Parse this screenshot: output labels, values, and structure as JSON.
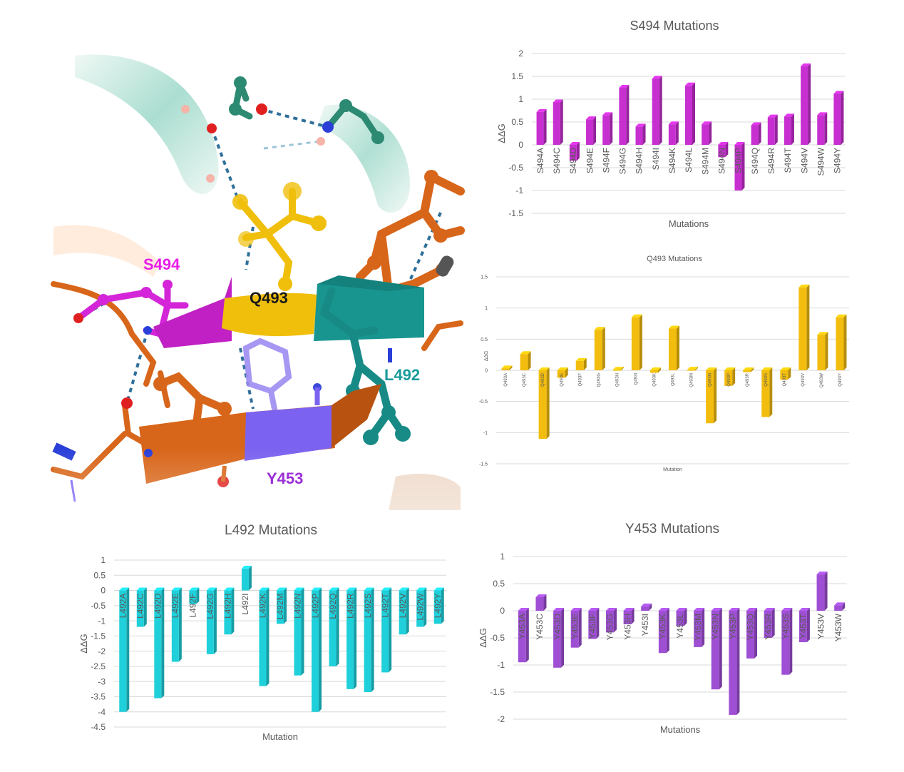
{
  "structure": {
    "labels": [
      {
        "id": "s494",
        "text": "S494",
        "color": "#e81ee8"
      },
      {
        "id": "q493",
        "text": "Q493",
        "color": "#1a1a1a"
      },
      {
        "id": "l492",
        "text": "L492",
        "color": "#1a9a9a"
      },
      {
        "id": "y453",
        "text": "Y453",
        "color": "#9b2fd6"
      }
    ],
    "colors": {
      "helix": "#8fd3c1",
      "orange_chain": "#d8661a",
      "magenta": "#d426d8",
      "yellow": "#f0bf0c",
      "teal": "#178a86",
      "purple": "#7b62f0",
      "oxygen": "#e02020",
      "nitrogen": "#2a3fd8",
      "hbond": "#2f6f9a"
    }
  },
  "chart_data": [
    {
      "id": "s494",
      "type": "bar",
      "title": "S494 Mutations",
      "xlabel": "Mutations",
      "ylabel": "ΔΔG",
      "ylim": [
        -1.5,
        2
      ],
      "yticks": [
        "2",
        "1.5",
        "1",
        "0.5",
        "0",
        "-0.5",
        "-1",
        "-1.5"
      ],
      "tick_values": [
        2,
        1.5,
        1,
        0.5,
        0,
        -0.5,
        -1,
        -1.5
      ],
      "color": "#c72fd0",
      "categories": [
        "S494A",
        "S494C",
        "S494D",
        "S494E",
        "S494F",
        "S494G",
        "S494H",
        "S494I",
        "S494K",
        "S494L",
        "S494M",
        "S494N",
        "S494P",
        "S494Q",
        "S494R",
        "S494T",
        "S494V",
        "S494W",
        "S494Y"
      ],
      "values": [
        0.72,
        0.93,
        -0.35,
        0.56,
        0.65,
        1.25,
        0.4,
        1.45,
        0.45,
        1.3,
        0.45,
        -0.27,
        -1.0,
        0.43,
        0.6,
        0.62,
        1.72,
        0.65,
        1.12
      ]
    },
    {
      "id": "q493",
      "type": "bar",
      "title": "Q493 Mutations",
      "xlabel": "Mutation",
      "ylabel": "ΔΔG",
      "ylim": [
        -1.5,
        1.5
      ],
      "yticks": [
        "1.5",
        "1",
        "0.5",
        "0",
        "-0.5",
        "-1",
        "-1.5"
      ],
      "tick_values": [
        1.5,
        1,
        0.5,
        0,
        -0.5,
        -1,
        -1.5
      ],
      "color": "#f2bd0e",
      "categories": [
        "Q493A",
        "Q493C",
        "Q493D",
        "Q493E",
        "Q493F",
        "Q493G",
        "Q493H",
        "Q493I",
        "Q493K",
        "Q493L",
        "Q493M",
        "Q493N",
        "Q493P",
        "Q493R",
        "Q493S",
        "Q493T",
        "Q493V",
        "Q493W",
        "Q493Y"
      ],
      "values": [
        0.03,
        0.26,
        -1.1,
        -0.12,
        0.15,
        0.65,
        0.01,
        0.85,
        -0.04,
        0.67,
        0.01,
        -0.85,
        -0.25,
        -0.03,
        -0.75,
        -0.15,
        1.33,
        0.57,
        0.85
      ]
    },
    {
      "id": "l492",
      "type": "bar",
      "title": "L492 Mutations",
      "xlabel": "Mutation",
      "ylabel": "ΔΔG",
      "ylim": [
        -4.5,
        1
      ],
      "yticks": [
        "1",
        "0.5",
        "0",
        "-0.5",
        "-1",
        "-1.5",
        "-2",
        "-2.5",
        "-3",
        "-3.5",
        "-4",
        "-4.5"
      ],
      "tick_values": [
        1,
        0.5,
        0,
        -0.5,
        -1,
        -1.5,
        -2,
        -2.5,
        -3,
        -3.5,
        -4,
        -4.5
      ],
      "color": "#1fd0da",
      "categories": [
        "L492A",
        "L492C",
        "L492D",
        "L492E",
        "L492F",
        "L492G",
        "L492H",
        "L492I",
        "L492K",
        "L492M",
        "L492N",
        "L492P",
        "L492Q",
        "L492R",
        "L492S",
        "L492T",
        "L492V",
        "L492W",
        "L492Y"
      ],
      "values": [
        -4.0,
        -1.2,
        -3.55,
        -2.35,
        -0.45,
        -2.1,
        -1.45,
        0.72,
        -3.15,
        -1.1,
        -2.8,
        -4.0,
        -2.5,
        -3.25,
        -3.35,
        -2.7,
        -1.45,
        -1.2,
        -1.1
      ]
    },
    {
      "id": "y453",
      "type": "bar",
      "title": "Y453 Mutations",
      "xlabel": "Mutations",
      "ylabel": "ΔΔG",
      "ylim": [
        -2,
        1
      ],
      "yticks": [
        "1",
        "0.5",
        "0",
        "-0.5",
        "-1",
        "-1.5",
        "-2"
      ],
      "tick_values": [
        1,
        0.5,
        0,
        -0.5,
        -1,
        -1.5,
        -2
      ],
      "color": "#9f4fd4",
      "categories": [
        "Y453A",
        "Y453C",
        "Y453D",
        "Y453E",
        "Y453F",
        "Y453G",
        "Y453H",
        "Y453I",
        "Y453K",
        "Y453L",
        "Y453M",
        "Y453N",
        "Y453P",
        "Y453Q",
        "Y453R",
        "Y453S",
        "Y453T",
        "Y453V",
        "Y453W"
      ],
      "values": [
        -0.95,
        0.25,
        -1.05,
        -0.68,
        -0.52,
        -0.4,
        -0.25,
        0.08,
        -0.78,
        -0.28,
        -0.67,
        -1.45,
        -1.92,
        -0.88,
        -0.5,
        -1.18,
        -0.58,
        0.67,
        0.1
      ]
    }
  ]
}
